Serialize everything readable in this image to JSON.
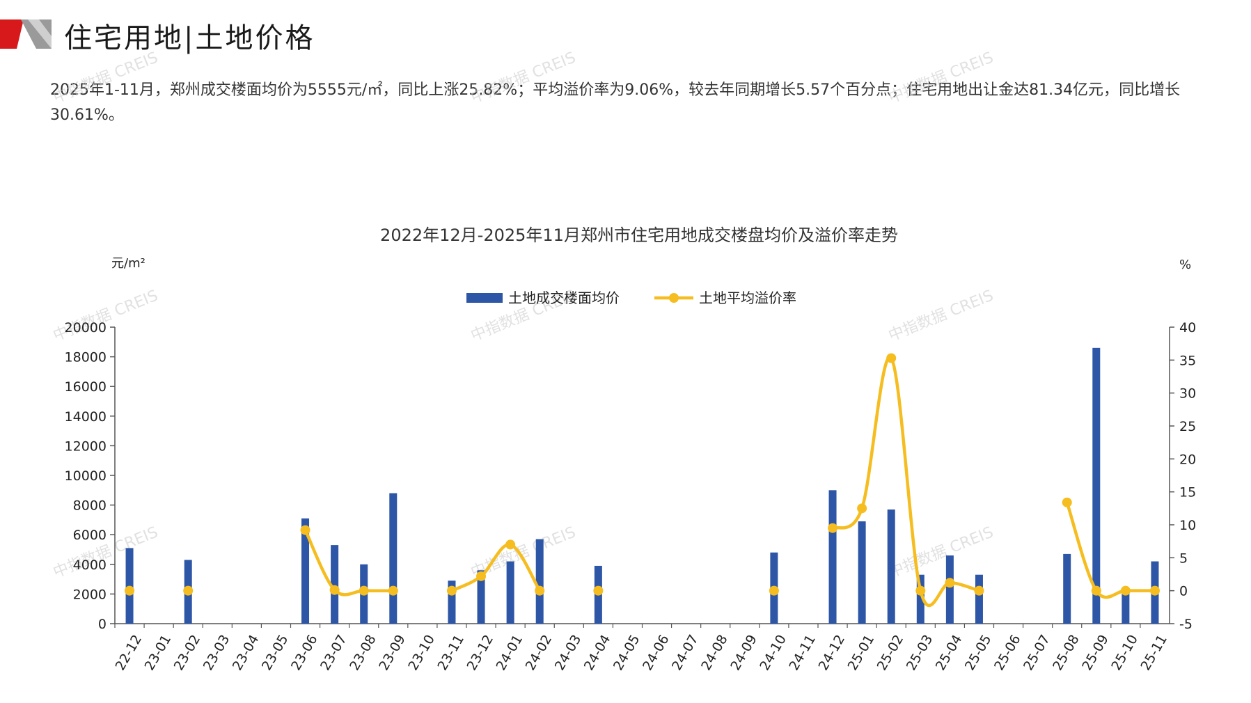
{
  "header": {
    "title": "住宅用地|土地价格",
    "accent_color": "#d7191c"
  },
  "summary": "2025年1-11月，郑州成交楼面均价为5555元/㎡，同比上涨25.82%；平均溢价率为9.06%，较去年同期增长5.57个百分点；住宅用地出让金达81.34亿元，同比增长30.61%。",
  "watermark": "中指数据 CREIS",
  "chart_data": {
    "type": "bar",
    "title": "2022年12月-2025年11月郑州市住宅用地成交楼盘均价及溢价率走势",
    "y_left_unit": "元/m²",
    "y_right_unit": "%",
    "ylim_left": [
      0,
      20000
    ],
    "yticks_left": [
      0,
      2000,
      4000,
      6000,
      8000,
      10000,
      12000,
      14000,
      16000,
      18000,
      20000
    ],
    "ylim_right": [
      -5,
      40
    ],
    "yticks_right": [
      -5,
      0,
      5,
      10,
      15,
      20,
      25,
      30,
      35,
      40
    ],
    "legend_position": "top",
    "categories": [
      "22-12",
      "23-01",
      "23-02",
      "23-03",
      "23-04",
      "23-05",
      "23-06",
      "23-07",
      "23-08",
      "23-09",
      "23-10",
      "23-11",
      "23-12",
      "24-01",
      "24-02",
      "24-03",
      "24-04",
      "24-05",
      "24-06",
      "24-07",
      "24-08",
      "24-09",
      "24-10",
      "24-11",
      "24-12",
      "25-01",
      "25-02",
      "25-03",
      "25-04",
      "25-05",
      "25-06",
      "25-07",
      "25-08",
      "25-09",
      "25-10",
      "25-11"
    ],
    "series": [
      {
        "name": "土地成交楼面均价",
        "type": "bar",
        "axis": "left",
        "color": "#2e56a6",
        "values": [
          5100,
          null,
          4300,
          null,
          null,
          null,
          7100,
          5300,
          4000,
          8800,
          null,
          2900,
          3600,
          4200,
          5700,
          null,
          3900,
          null,
          null,
          null,
          null,
          null,
          4800,
          null,
          9000,
          6900,
          7700,
          3300,
          4600,
          3300,
          null,
          null,
          4700,
          18600,
          2100,
          4200
        ]
      },
      {
        "name": "土地平均溢价率",
        "type": "line",
        "axis": "right",
        "color": "#f5bd1f",
        "values": [
          0,
          null,
          0,
          null,
          null,
          null,
          9.2,
          0.1,
          0,
          0,
          null,
          0,
          2.2,
          7,
          0,
          null,
          0,
          null,
          null,
          null,
          null,
          null,
          0,
          null,
          9.5,
          12.5,
          35.3,
          0,
          1.2,
          0,
          null,
          null,
          13.4,
          0,
          0,
          0
        ]
      }
    ]
  }
}
